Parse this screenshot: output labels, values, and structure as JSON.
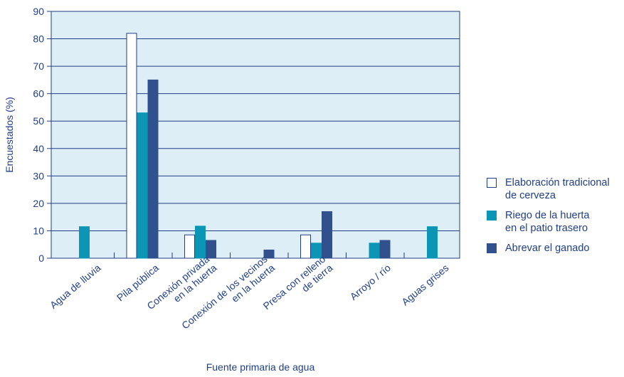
{
  "chart_data": {
    "type": "bar",
    "title": "",
    "xlabel": "Fuente primaria de agua",
    "ylabel": "Encuestados (%)",
    "ylim": [
      0,
      90
    ],
    "yticks": [
      0,
      10,
      20,
      30,
      40,
      50,
      60,
      70,
      80,
      90
    ],
    "grid": true,
    "legend_position": "right",
    "categories": [
      "Agua de lluvia",
      "Pila pública",
      "Conexión privada\nen la huerta",
      "Conexión de los vecinos\nen la huerta",
      "Presa con relleno\nde tierra",
      "Arroyo / río",
      "Aguas grises"
    ],
    "series": [
      {
        "name": "Elaboración tradicional\nde cerveza",
        "color": "#ffffff",
        "stroke": "#1f3f86",
        "values": [
          0,
          82,
          8.5,
          0,
          8.5,
          0,
          0
        ]
      },
      {
        "name": "Riego de la huerta\nen el patio trasero",
        "color": "#0a96b4",
        "stroke": "#0a96b4",
        "values": [
          11.5,
          53,
          11.7,
          0,
          5.5,
          5.5,
          11.5
        ]
      },
      {
        "name": "Abrevar el ganado",
        "color": "#30508e",
        "stroke": "#30508e",
        "values": [
          0,
          65,
          6.5,
          3,
          17,
          6.5,
          0
        ]
      }
    ],
    "plot_background": "#ddeef6",
    "grid_color": "#1f3f86"
  }
}
